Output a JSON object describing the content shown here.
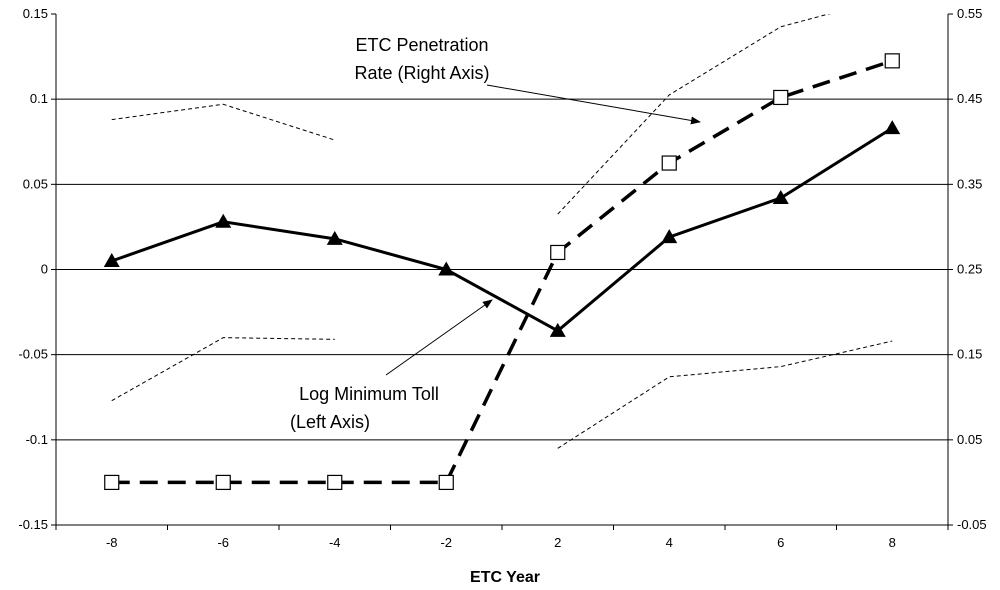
{
  "chart_data": {
    "type": "line",
    "xlabel": "ETC Year",
    "categories": [
      "-8",
      "-6",
      "-4",
      "-2",
      "2",
      "4",
      "6",
      "8"
    ],
    "left_axis": {
      "ylim": [
        -0.15,
        0.15
      ],
      "ticks": [
        "0.15",
        "0.1",
        "0.05",
        "0",
        "-0.05",
        "-0.1",
        "-0.15"
      ]
    },
    "right_axis": {
      "ylim": [
        -0.05,
        0.55
      ],
      "ticks": [
        "0.55",
        "0.45",
        "0.35",
        "0.25",
        "0.15",
        "0.05",
        "-0.05"
      ]
    },
    "grid": true,
    "series": [
      {
        "name": "Log Minimum Toll (Left Axis)",
        "axis": "left",
        "style": "solid-triangle",
        "values": [
          0.005,
          0.028,
          0.018,
          0.0,
          -0.036,
          0.019,
          0.042,
          0.083
        ],
        "ci_upper": [
          0.088,
          0.097,
          0.076,
          null,
          null,
          null,
          null,
          null
        ],
        "ci_lower": [
          -0.077,
          -0.04,
          -0.041,
          null,
          -0.105,
          -0.063,
          -0.057,
          -0.042
        ]
      },
      {
        "name": "ETC Penetration Rate (Right Axis)",
        "axis": "right",
        "style": "dashed-square",
        "values": [
          0.0,
          0.0,
          0.0,
          0.0,
          0.27,
          0.375,
          0.452,
          0.495
        ],
        "ci_upper": [
          null,
          null,
          null,
          null,
          0.315,
          0.455,
          0.535,
          0.57
        ]
      }
    ],
    "annotations": [
      {
        "line1": "ETC Penetration",
        "line2": "Rate (Right Axis)"
      },
      {
        "line1": "Log Minimum Toll",
        "line2": "(Left Axis)"
      }
    ]
  }
}
